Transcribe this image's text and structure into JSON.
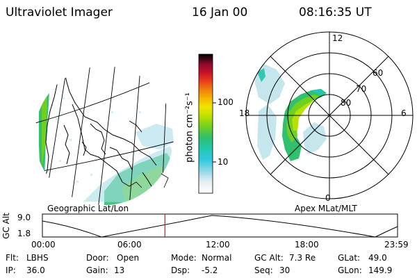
{
  "header": {
    "instrument": "Ultraviolet Imager",
    "date": "16 Jan 00",
    "time": "08:16:35 UT"
  },
  "geo_panel": {
    "label": "Geographic Lat/Lon"
  },
  "colorbar": {
    "unit_label": "photon cm⁻²s⁻¹",
    "ticks": [
      "100",
      "10"
    ],
    "colors": [
      "#000000",
      "#4b0a30",
      "#8a0a2a",
      "#c8102a",
      "#e83a1a",
      "#f07a10",
      "#f5b000",
      "#f2e400",
      "#b8e000",
      "#70d020",
      "#30c070",
      "#20c8b0",
      "#30c8e0",
      "#90d8e8",
      "#e6f0f2",
      "#ffffff"
    ]
  },
  "polar_panel": {
    "label": "Apex MLat/MLT",
    "lat_labels": [
      "60",
      "70",
      "80"
    ],
    "mlt_labels": {
      "top": "12",
      "left": "18",
      "right": "6",
      "bottom": "0"
    }
  },
  "altitude_plot": {
    "ylabel": "GC Alt",
    "ymax": "9.0",
    "ymin": "1.8",
    "x_ticks": [
      "00:00",
      "06:00",
      "12:00",
      "18:00",
      "23:59"
    ],
    "current_time_marker_hours": 8.28,
    "marker_color": "#e01010"
  },
  "status": {
    "flt_label": "Flt:",
    "flt_value": "LBHS",
    "ip_label": "IP:",
    "ip_value": "36.0",
    "door_label": "Door:",
    "door_value": "Open",
    "gain_label": "Gain:",
    "gain_value": "13",
    "mode_label": "Mode:",
    "mode_value": "Normal",
    "dsp_label": "Dsp:",
    "dsp_value": "-5.2",
    "gcalt_label": "GC Alt:",
    "gcalt_value": "7.3 Re",
    "seq_label": "Seq:",
    "seq_value": "30",
    "glat_label": "GLat:",
    "glat_value": "49.0",
    "glon_label": "GLon:",
    "glon_value": "149.9"
  }
}
